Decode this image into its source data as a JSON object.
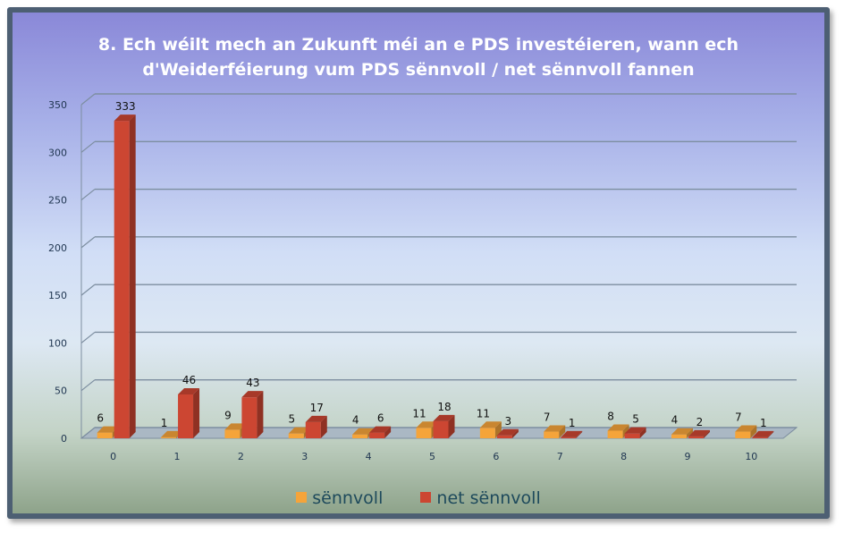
{
  "chart_data": {
    "type": "bar",
    "title_line1": "8. Ech wéilt mech an Zukunft méi an e PDS investéieren,  wann ech",
    "title_line2": "d'Weiderféierung vum PDS sënnvoll / net sënnvoll fannen",
    "categories": [
      "0",
      "1",
      "2",
      "3",
      "4",
      "5",
      "6",
      "7",
      "8",
      "9",
      "10"
    ],
    "series": [
      {
        "name": "sënnvoll",
        "values": [
          6,
          1,
          9,
          5,
          4,
          11,
          11,
          7,
          8,
          4,
          7
        ],
        "color": "#f5a43a"
      },
      {
        "name": "net sënnvoll",
        "values": [
          333,
          46,
          43,
          17,
          6,
          18,
          3,
          1,
          5,
          2,
          1
        ],
        "color": "#cc4632"
      }
    ],
    "yticks": [
      "0",
      "50",
      "100",
      "150",
      "200",
      "250",
      "300",
      "350"
    ],
    "ylim": [
      0,
      350
    ],
    "grid": true,
    "legend_position": "bottom"
  }
}
